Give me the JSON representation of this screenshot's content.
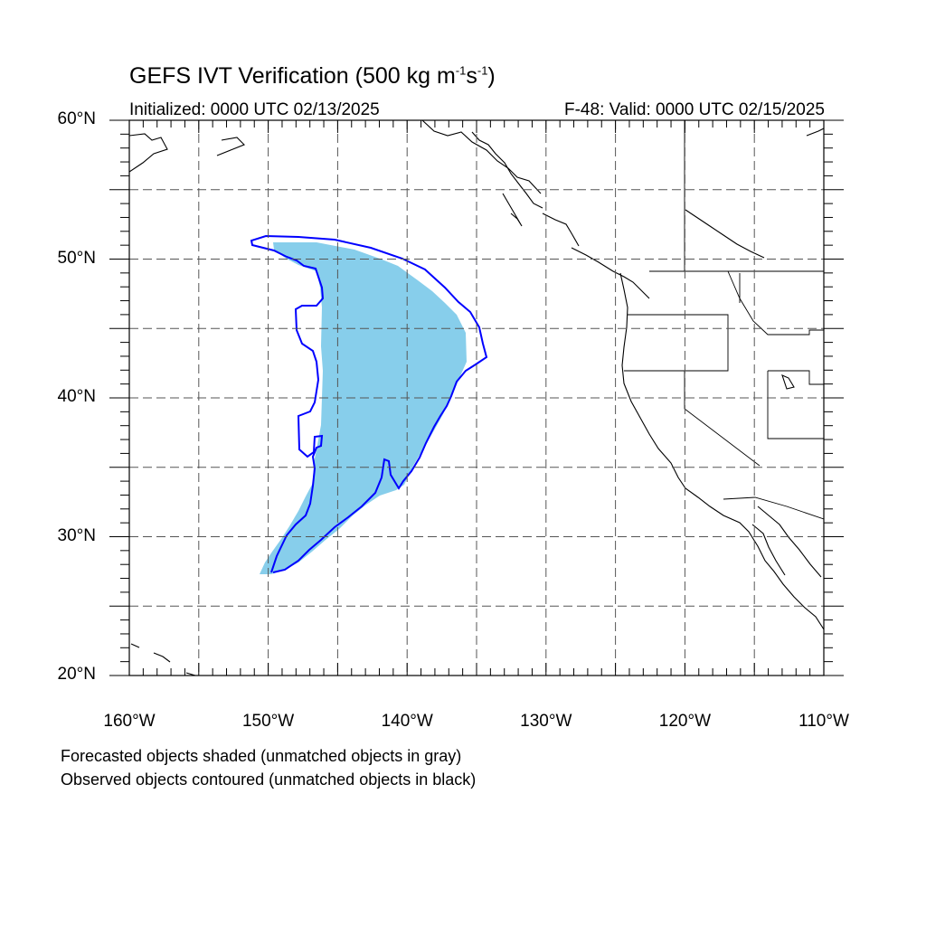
{
  "header": {
    "title_main": "GEFS IVT Verification (500 kg m",
    "title_sup1": "-1",
    "title_mid": "s",
    "title_sup2": "-1",
    "title_end": ")",
    "initialized": "Initialized: 0000 UTC 02/13/2025",
    "valid": "F-48: Valid: 0000 UTC 02/15/2025"
  },
  "axes": {
    "lon_range": [
      -160,
      -110
    ],
    "lat_range": [
      20,
      60
    ],
    "x_labels": [
      {
        "lon": -160,
        "text": "160°W"
      },
      {
        "lon": -150,
        "text": "150°W"
      },
      {
        "lon": -140,
        "text": "140°W"
      },
      {
        "lon": -130,
        "text": "130°W"
      },
      {
        "lon": -120,
        "text": "120°W"
      },
      {
        "lon": -110,
        "text": "110°W"
      }
    ],
    "y_labels": [
      {
        "lat": 60,
        "text": "60°N"
      },
      {
        "lat": 50,
        "text": "50°N"
      },
      {
        "lat": 40,
        "text": "40°N"
      },
      {
        "lat": 30,
        "text": "30°N"
      },
      {
        "lat": 20,
        "text": "20°N"
      }
    ],
    "grid_lons": [
      -155,
      -150,
      -145,
      -140,
      -135,
      -130,
      -125,
      -120,
      -115
    ],
    "grid_lats": [
      25,
      30,
      35,
      40,
      45,
      50,
      55
    ],
    "grid": "dashed"
  },
  "colors": {
    "forecast_fill": "#87ceeb",
    "observed_contour": "#0000ff",
    "coastline": "#000000"
  },
  "footer": {
    "line1": "Forecasted objects shaded (unmatched objects in gray)",
    "line2": "Observed objects contoured (unmatched objects in black)"
  }
}
